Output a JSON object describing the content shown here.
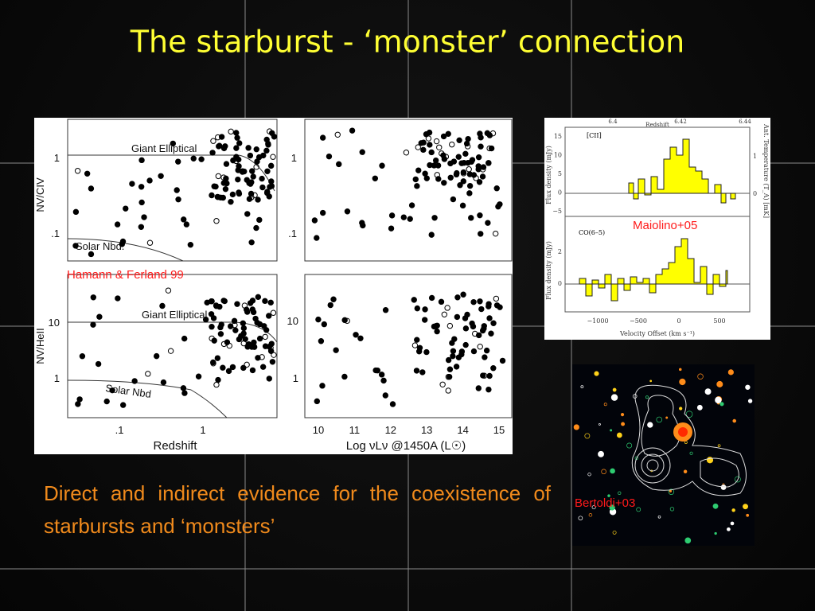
{
  "title": "The starburst - ‘monster’ connection",
  "body": "Direct and indirect evidence for the coexistence of starbursts and ‘monsters’",
  "figures": [
    {
      "credit": "Hamann & Ferland 99",
      "labels": {
        "giant_top": "Giant Elliptical",
        "solar_top": "Solar Nbd.",
        "giant_bottom": "Giant Elliptical",
        "solar_bottom": "Solar Nbd",
        "y_top": "NV/CIV",
        "y_bottom": "NV/HeII",
        "x_left": "Redshift",
        "x_right": "Log νLν @1450A (L☉)"
      },
      "y_ticks_top": [
        "1",
        ".1"
      ],
      "y_ticks_bottom": [
        "10",
        "1"
      ],
      "x_ticks_left": [
        ".1",
        "1"
      ],
      "x_ticks_right": [
        "10",
        "11",
        "12",
        "13",
        "14",
        "15"
      ]
    },
    {
      "credit": "Maiolino+05",
      "labels": {
        "line_top": "[CII]",
        "line_bottom": "CO(6–5)",
        "x_top": "Redshift",
        "y_left_top": "Flux density (mJy)",
        "y_left_bottom": "Flux density (mJy)",
        "y_right": "Ant. Temperature (T_A) [mK]",
        "x_bottom": "Velocity Offset (km s⁻¹)"
      },
      "redshift_ticks": [
        "6.4",
        "6.42",
        "6.44"
      ],
      "y_ticks_top": [
        "15",
        "10",
        "5",
        "0",
        "−5"
      ],
      "y_ticks_right": [
        "1",
        "0"
      ],
      "y_ticks_bottom": [
        "2",
        "0"
      ],
      "x_ticks": [
        "−1000",
        "−500",
        "0",
        "500"
      ]
    },
    {
      "credit": "Bertoldi+03"
    }
  ]
}
